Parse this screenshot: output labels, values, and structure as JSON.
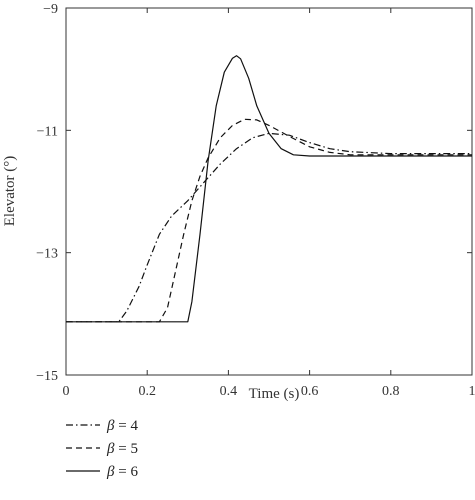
{
  "chart_data": {
    "type": "line",
    "title": "",
    "xlabel": "Time (s)",
    "ylabel": "Elevator (°)",
    "xlim": [
      0,
      1
    ],
    "ylim": [
      -15,
      -9
    ],
    "xticks": [
      0,
      0.2,
      0.4,
      0.6,
      0.8,
      1
    ],
    "xtick_labels": [
      "0",
      "0.2",
      "0.4",
      "0.6",
      "0.8",
      "1"
    ],
    "yticks": [
      -15,
      -13,
      -11,
      -9
    ],
    "ytick_labels": [
      "−15",
      "−13",
      "−11",
      "−9"
    ],
    "grid": false,
    "legend_placement": "bottom-left, below plot",
    "series": [
      {
        "name": "β = 4",
        "legend_symbol": "β",
        "legend_value": "= 4",
        "style": "dashdot",
        "x": [
          0,
          0.13,
          0.15,
          0.18,
          0.2,
          0.23,
          0.26,
          0.3,
          0.34,
          0.38,
          0.42,
          0.46,
          0.5,
          0.55,
          0.6,
          0.65,
          0.7,
          0.8,
          0.9,
          1.0
        ],
        "y": [
          -14.13,
          -14.13,
          -13.95,
          -13.55,
          -13.2,
          -12.7,
          -12.4,
          -12.15,
          -11.85,
          -11.55,
          -11.3,
          -11.12,
          -11.05,
          -11.08,
          -11.2,
          -11.3,
          -11.35,
          -11.38,
          -11.38,
          -11.38
        ]
      },
      {
        "name": "β = 5",
        "legend_symbol": "β",
        "legend_value": "= 5",
        "style": "dashed",
        "x": [
          0,
          0.23,
          0.25,
          0.27,
          0.29,
          0.31,
          0.33,
          0.35,
          0.38,
          0.41,
          0.44,
          0.47,
          0.5,
          0.55,
          0.6,
          0.65,
          0.7,
          0.8,
          0.9,
          1.0
        ],
        "y": [
          -14.13,
          -14.13,
          -13.9,
          -13.3,
          -12.7,
          -12.15,
          -11.75,
          -11.45,
          -11.12,
          -10.92,
          -10.82,
          -10.83,
          -10.92,
          -11.1,
          -11.27,
          -11.36,
          -11.4,
          -11.4,
          -11.4,
          -11.4
        ]
      },
      {
        "name": "β = 6",
        "legend_symbol": "β",
        "legend_value": "= 6",
        "style": "solid",
        "x": [
          0,
          0.3,
          0.31,
          0.33,
          0.35,
          0.37,
          0.39,
          0.41,
          0.42,
          0.43,
          0.45,
          0.47,
          0.5,
          0.53,
          0.56,
          0.6,
          0.65,
          0.7,
          0.8,
          0.9,
          1.0
        ],
        "y": [
          -14.13,
          -14.13,
          -13.8,
          -12.7,
          -11.5,
          -10.6,
          -10.05,
          -9.82,
          -9.78,
          -9.83,
          -10.15,
          -10.6,
          -11.05,
          -11.3,
          -11.4,
          -11.42,
          -11.42,
          -11.42,
          -11.42,
          -11.42,
          -11.42
        ]
      }
    ]
  }
}
